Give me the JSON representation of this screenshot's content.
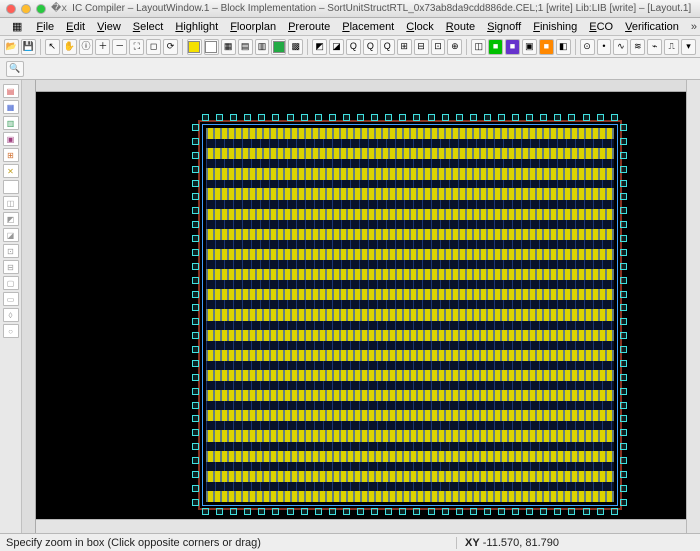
{
  "title": "IC Compiler – LayoutWindow.1 – Block Implementation – SortUnitStructRTL_0x73ab8da9cdd886de.CEL;1 [write]    Lib:LIB [write] – [Layout.1]",
  "menu": [
    "File",
    "Edit",
    "View",
    "Select",
    "Highlight",
    "Floorplan",
    "Preroute",
    "Placement",
    "Clock",
    "Route",
    "Signoff",
    "Finishing",
    "ECO",
    "Verification"
  ],
  "menu_overflow": "»",
  "traffic": {
    "close": "#ff5f57",
    "min": "#ffbd2e",
    "max": "#28c940"
  },
  "toolbar_icons": [
    {
      "n": "open-icon",
      "g": "📂"
    },
    {
      "n": "save-icon",
      "g": "💾"
    },
    {
      "sep": true
    },
    {
      "n": "pointer-icon",
      "g": "↖"
    },
    {
      "n": "hand-icon",
      "g": "✋"
    },
    {
      "n": "info-icon",
      "g": "ⓘ"
    },
    {
      "n": "zoom-in-icon",
      "g": "＋"
    },
    {
      "n": "zoom-out-icon",
      "g": "－"
    },
    {
      "n": "zoom-fit-icon",
      "g": "⛶"
    },
    {
      "n": "zoom-box-icon",
      "g": "◻"
    },
    {
      "n": "refresh-icon",
      "g": "⟳"
    },
    {
      "sep": true
    },
    {
      "n": "swatch-yellow",
      "bg": "#f5e100"
    },
    {
      "n": "swatch-white",
      "bg": "#ffffff"
    },
    {
      "n": "layer-a-icon",
      "g": "▦"
    },
    {
      "n": "layer-b-icon",
      "g": "▤"
    },
    {
      "n": "layer-c-icon",
      "g": "▥"
    },
    {
      "n": "layer-d-icon",
      "bg": "#22aa44"
    },
    {
      "n": "layer-e-icon",
      "g": "▩"
    },
    {
      "sep": true
    },
    {
      "n": "sel-all-icon",
      "g": "◩"
    },
    {
      "n": "sel-none-icon",
      "g": "◪"
    },
    {
      "n": "q1-icon",
      "g": "Q"
    },
    {
      "n": "q2-icon",
      "g": "Q"
    },
    {
      "n": "q3-icon",
      "g": "Q"
    },
    {
      "n": "grid-a-icon",
      "g": "⊞"
    },
    {
      "n": "grid-b-icon",
      "g": "⊟"
    },
    {
      "n": "grid-c-icon",
      "g": "⊡"
    },
    {
      "n": "target-icon",
      "g": "⊕"
    },
    {
      "sep": true
    },
    {
      "n": "hi-a-icon",
      "g": "◫"
    },
    {
      "n": "hi-b-icon",
      "bg": "#00c000",
      "g": "■"
    },
    {
      "n": "hi-c-icon",
      "bg": "#6633cc",
      "g": "■"
    },
    {
      "n": "hi-d-icon",
      "g": "▣"
    },
    {
      "n": "hi-e-icon",
      "bg": "#ff8800",
      "g": "■"
    },
    {
      "n": "hi-f-icon",
      "g": "◧"
    },
    {
      "sep": true
    },
    {
      "n": "t1-icon",
      "g": "⊙"
    },
    {
      "n": "t2-icon",
      "g": "•"
    },
    {
      "n": "t3-icon",
      "g": "∿"
    },
    {
      "n": "t4-icon",
      "g": "≋"
    },
    {
      "n": "t5-icon",
      "g": "⌁"
    },
    {
      "n": "t6-icon",
      "g": "⎍"
    },
    {
      "n": "t7-icon",
      "g": "▾"
    }
  ],
  "subbar_icon": {
    "n": "inspect-icon",
    "g": "🔍"
  },
  "side_icons": [
    {
      "n": "side-layers",
      "g": "▤",
      "c": "#d04040"
    },
    {
      "n": "side-cells",
      "g": "▦",
      "c": "#4060d0"
    },
    {
      "n": "side-nets",
      "g": "▥",
      "c": "#40a060"
    },
    {
      "n": "side-pins",
      "g": "▣",
      "c": "#a04080"
    },
    {
      "n": "side-hier",
      "g": "⊞",
      "c": "#d07030"
    },
    {
      "n": "side-x",
      "g": "✕",
      "c": "#c0a020"
    },
    {
      "n": "side-sep",
      "g": ""
    },
    {
      "n": "side-a",
      "g": "◫",
      "c": "#999"
    },
    {
      "n": "side-b",
      "g": "◩",
      "c": "#999"
    },
    {
      "n": "side-c",
      "g": "◪",
      "c": "#999"
    },
    {
      "n": "side-d",
      "g": "⊡",
      "c": "#999"
    },
    {
      "n": "side-e",
      "g": "⊟",
      "c": "#999"
    },
    {
      "n": "side-f",
      "g": "▢",
      "c": "#999"
    },
    {
      "n": "side-g",
      "g": "▭",
      "c": "#999"
    },
    {
      "n": "side-h",
      "g": "◊",
      "c": "#999"
    },
    {
      "n": "side-i",
      "g": "○",
      "c": "#999"
    }
  ],
  "layout": {
    "row_count": 19,
    "pads_h": 30,
    "pads_v": 28,
    "row_color": "#e8e000",
    "via_color": "#2850ff",
    "pad_color": "#40e0e0",
    "bg": "#000000",
    "ring": "#883322"
  },
  "status": {
    "hint": "Specify zoom in box (Click opposite corners or drag)",
    "xy_label": "XY",
    "xy_value": "-11.570, 81.790"
  }
}
